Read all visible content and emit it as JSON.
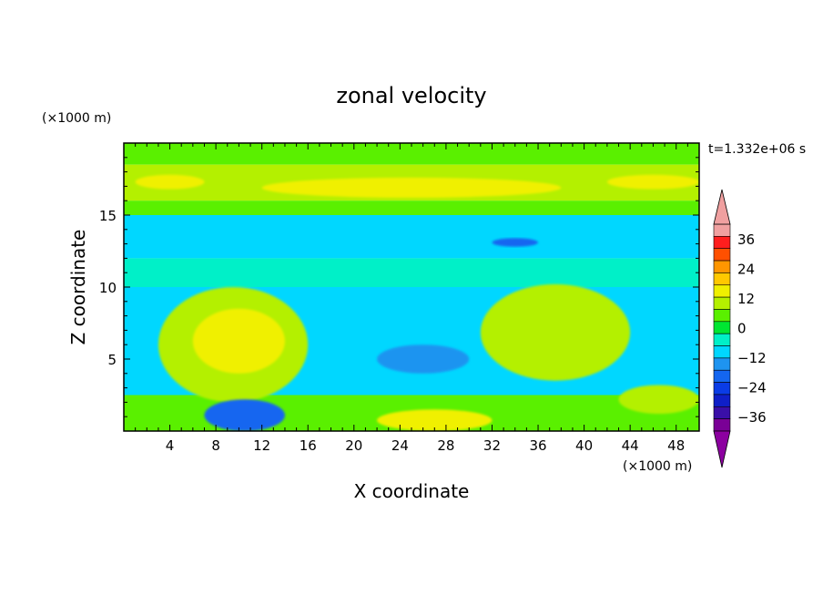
{
  "chart_data": {
    "type": "heatmap",
    "title": "zonal velocity",
    "xlabel": "X coordinate",
    "ylabel": "Z coordinate",
    "x_unit": "(×1000 m)",
    "y_unit": "(×1000 m)",
    "time_label": "t=1.332e+06 s",
    "xlim": [
      0,
      50
    ],
    "ylim": [
      0,
      20
    ],
    "x_ticks": [
      4,
      8,
      12,
      16,
      20,
      24,
      28,
      32,
      36,
      40,
      44,
      48
    ],
    "y_ticks": [
      5,
      10,
      15
    ],
    "colorbar": {
      "levels": [
        -42,
        -36,
        -30,
        -24,
        -18,
        -12,
        -6,
        0,
        3,
        6,
        12,
        18,
        24,
        30,
        36,
        42
      ],
      "tick_labels": [
        36,
        24,
        12,
        0,
        -12,
        -24,
        -36
      ],
      "colors": [
        "#7a0096",
        "#3a0fa8",
        "#0f1fc8",
        "#0a3ce6",
        "#1466f0",
        "#1e94f0",
        "#00d7ff",
        "#00f0c8",
        "#00e632",
        "#5af000",
        "#b4f000",
        "#f0f000",
        "#ffc800",
        "#ff9600",
        "#ff5000",
        "#ff1e1e",
        "#f0a0a0"
      ],
      "extend_low_color": "#8c00a0",
      "extend_high_color": "#f0a0a0"
    },
    "regions": [
      {
        "z": [
          18.5,
          20
        ],
        "value": 3
      },
      {
        "z": [
          16,
          18.5
        ],
        "value": 8
      },
      {
        "z": [
          15,
          16
        ],
        "value": 4
      },
      {
        "z": [
          12,
          15
        ],
        "value": -8
      },
      {
        "z": [
          10,
          12
        ],
        "value": -5
      },
      {
        "z": [
          2.5,
          10
        ],
        "value": -8
      },
      {
        "z": [
          0,
          2.5
        ],
        "value": 3
      }
    ],
    "features": [
      {
        "name": "jet-core",
        "x": [
          12,
          38
        ],
        "z": [
          16.2,
          17.6
        ],
        "value": 12
      },
      {
        "name": "left-core-high",
        "x": [
          1,
          7
        ],
        "z": [
          16.8,
          17.8
        ],
        "value": 12
      },
      {
        "name": "right-core-high",
        "x": [
          42,
          50
        ],
        "z": [
          16.8,
          17.8
        ],
        "value": 12
      },
      {
        "name": "upper-negative-streak",
        "x": [
          32,
          36
        ],
        "z": [
          12.8,
          13.4
        ],
        "value": -20
      },
      {
        "name": "left-positive-lobe",
        "x": [
          3,
          16
        ],
        "z": [
          2.0,
          10.0
        ],
        "value": 8
      },
      {
        "name": "left-positive-lobe-core",
        "x": [
          6,
          14
        ],
        "z": [
          4.0,
          8.5
        ],
        "value": 12
      },
      {
        "name": "right-positive-lobe",
        "x": [
          31,
          44
        ],
        "z": [
          3.5,
          10.2
        ],
        "value": 6
      },
      {
        "name": "mid-negative-core",
        "x": [
          22,
          30
        ],
        "z": [
          4.0,
          6.0
        ],
        "value": -18
      },
      {
        "name": "bottom-left-negative",
        "x": [
          7,
          14
        ],
        "z": [
          0,
          2.2
        ],
        "value": -20
      },
      {
        "name": "bottom-center-positive",
        "x": [
          22,
          32
        ],
        "z": [
          0,
          1.5
        ],
        "value": 12
      },
      {
        "name": "bottom-right-positive",
        "x": [
          43,
          50
        ],
        "z": [
          1.2,
          3.2
        ],
        "value": 8
      }
    ]
  }
}
